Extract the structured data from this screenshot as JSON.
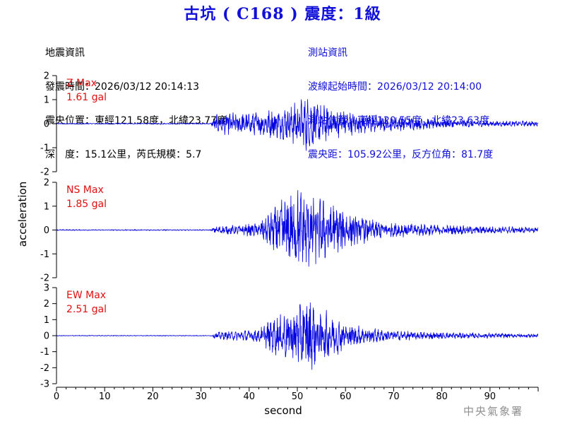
{
  "header": {
    "title": "古坑 ( C168 ) 震度：1級"
  },
  "quake_info": {
    "heading": "地震資訊",
    "time": "發震時間：2026/03/12 20:14:13",
    "location": "震央位置：東經121.58度，北緯23.77度",
    "depth_mag": "深　度：15.1公里，芮氏規模：5.7"
  },
  "station_info": {
    "heading": "測站資訊",
    "start_time": "波線起始時間：2026/03/12 20:14:00",
    "location": "測站位置：東經120.55度，北緯23.63度",
    "distance": "震央距：105.92公里，反方位角：81.7度"
  },
  "watermark": "中央氣象署",
  "colors": {
    "trace": "#0000e0",
    "max_label": "#e01010",
    "title": "#1010d8"
  },
  "chart_data": {
    "type": "line",
    "xlabel": "second",
    "ylabel": "acceleration",
    "xlim": [
      0,
      100
    ],
    "x_ticks": [
      0,
      10,
      20,
      30,
      40,
      50,
      60,
      70,
      80,
      90
    ],
    "panels": [
      {
        "name": "Z",
        "max_title": "Z Max",
        "max_value": "1.61 gal",
        "ylim": [
          -2,
          2
        ],
        "y_ticks": [
          -2,
          -1,
          0,
          1,
          2
        ],
        "envelope": [
          [
            0,
            0.02
          ],
          [
            32,
            0.02
          ],
          [
            33,
            0.35
          ],
          [
            35,
            0.45
          ],
          [
            40,
            0.45
          ],
          [
            44,
            0.55
          ],
          [
            48,
            0.7
          ],
          [
            50,
            0.9
          ],
          [
            52,
            1.1
          ],
          [
            54,
            0.85
          ],
          [
            56,
            0.7
          ],
          [
            60,
            0.5
          ],
          [
            65,
            0.38
          ],
          [
            70,
            0.3
          ],
          [
            80,
            0.18
          ],
          [
            90,
            0.12
          ],
          [
            100,
            0.1
          ]
        ]
      },
      {
        "name": "NS",
        "max_title": "NS Max",
        "max_value": "1.85 gal",
        "ylim": [
          -2,
          2
        ],
        "y_ticks": [
          -2,
          -1,
          0,
          1,
          2
        ],
        "envelope": [
          [
            0,
            0.02
          ],
          [
            32,
            0.02
          ],
          [
            33,
            0.15
          ],
          [
            38,
            0.2
          ],
          [
            42,
            0.3
          ],
          [
            45,
            0.9
          ],
          [
            48,
            1.5
          ],
          [
            50,
            1.7
          ],
          [
            52,
            1.6
          ],
          [
            55,
            1.3
          ],
          [
            58,
            1.1
          ],
          [
            60,
            0.8
          ],
          [
            65,
            0.45
          ],
          [
            70,
            0.3
          ],
          [
            80,
            0.2
          ],
          [
            90,
            0.15
          ],
          [
            100,
            0.12
          ]
        ]
      },
      {
        "name": "EW",
        "max_title": "EW Max",
        "max_value": "2.51 gal",
        "ylim": [
          -3,
          3
        ],
        "y_ticks": [
          -3,
          -2,
          -1,
          0,
          1,
          2,
          3
        ],
        "envelope": [
          [
            0,
            0.02
          ],
          [
            32,
            0.02
          ],
          [
            33,
            0.2
          ],
          [
            38,
            0.3
          ],
          [
            42,
            0.4
          ],
          [
            45,
            1.1
          ],
          [
            48,
            1.5
          ],
          [
            50,
            1.9
          ],
          [
            52,
            2.3
          ],
          [
            55,
            1.6
          ],
          [
            58,
            1.2
          ],
          [
            60,
            0.8
          ],
          [
            65,
            0.45
          ],
          [
            70,
            0.3
          ],
          [
            80,
            0.2
          ],
          [
            90,
            0.15
          ],
          [
            100,
            0.12
          ]
        ]
      }
    ]
  }
}
